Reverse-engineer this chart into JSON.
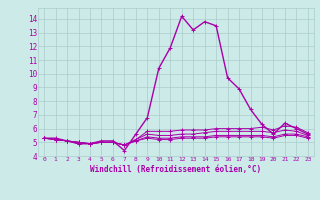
{
  "xlabel": "Windchill (Refroidissement éolien,°C)",
  "bg_color": "#cceae7",
  "grid_color": "#aacccc",
  "line_color": "#aa00aa",
  "xlim": [
    -0.5,
    23.5
  ],
  "ylim": [
    4,
    14.8
  ],
  "xticks": [
    0,
    1,
    2,
    3,
    4,
    5,
    6,
    7,
    8,
    9,
    10,
    11,
    12,
    13,
    14,
    15,
    16,
    17,
    18,
    19,
    20,
    21,
    22,
    23
  ],
  "yticks": [
    4,
    5,
    6,
    7,
    8,
    9,
    10,
    11,
    12,
    13,
    14
  ],
  "series": [
    [
      5.3,
      5.3,
      5.1,
      4.9,
      4.9,
      5.1,
      5.1,
      4.4,
      5.6,
      6.8,
      10.4,
      11.9,
      14.2,
      13.2,
      13.8,
      13.5,
      9.7,
      8.9,
      7.4,
      6.3,
      5.6,
      6.4,
      6.0,
      5.6
    ],
    [
      5.3,
      5.2,
      5.1,
      4.9,
      4.9,
      5.0,
      5.0,
      4.8,
      5.2,
      5.8,
      5.8,
      5.8,
      5.9,
      5.9,
      5.9,
      6.0,
      6.0,
      6.0,
      6.0,
      6.1,
      5.9,
      6.2,
      6.1,
      5.7
    ],
    [
      5.3,
      5.2,
      5.1,
      5.0,
      4.9,
      5.0,
      5.0,
      4.8,
      5.2,
      5.6,
      5.5,
      5.5,
      5.6,
      5.6,
      5.7,
      5.8,
      5.8,
      5.8,
      5.8,
      5.8,
      5.7,
      5.9,
      5.8,
      5.5
    ],
    [
      5.3,
      5.2,
      5.1,
      5.0,
      4.9,
      5.0,
      5.0,
      4.8,
      5.1,
      5.4,
      5.3,
      5.3,
      5.4,
      5.4,
      5.4,
      5.5,
      5.5,
      5.5,
      5.5,
      5.5,
      5.4,
      5.6,
      5.6,
      5.4
    ],
    [
      5.3,
      5.2,
      5.1,
      5.0,
      4.9,
      5.0,
      5.0,
      4.8,
      5.1,
      5.3,
      5.2,
      5.2,
      5.3,
      5.3,
      5.3,
      5.4,
      5.4,
      5.4,
      5.4,
      5.4,
      5.3,
      5.5,
      5.5,
      5.3
    ]
  ]
}
